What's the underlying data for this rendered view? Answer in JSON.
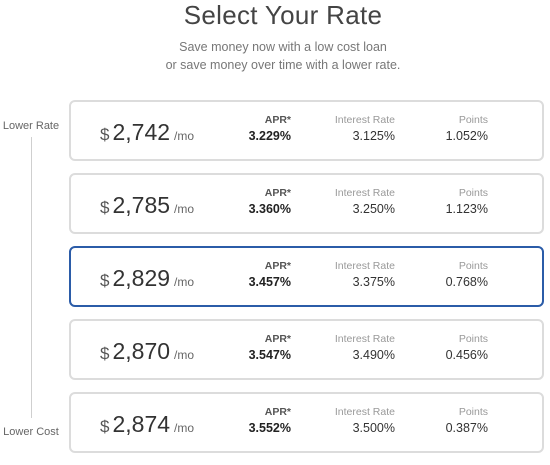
{
  "header": {
    "title": "Select Your Rate",
    "subtitle_line1": "Save money now with a low cost loan",
    "subtitle_line2": "or save money over time with a lower rate."
  },
  "scale": {
    "top_label": "Lower Rate",
    "bottom_label": "Lower Cost"
  },
  "labels": {
    "currency": "$",
    "per": "/mo",
    "apr": "APR*",
    "interest_rate": "Interest Rate",
    "points": "Points"
  },
  "rates": [
    {
      "payment": "2,742",
      "apr": "3.229%",
      "interest_rate": "3.125%",
      "points": "1.052%",
      "selected": false
    },
    {
      "payment": "2,785",
      "apr": "3.360%",
      "interest_rate": "3.250%",
      "points": "1.123%",
      "selected": false
    },
    {
      "payment": "2,829",
      "apr": "3.457%",
      "interest_rate": "3.375%",
      "points": "0.768%",
      "selected": true
    },
    {
      "payment": "2,870",
      "apr": "3.547%",
      "interest_rate": "3.490%",
      "points": "0.456%",
      "selected": false
    },
    {
      "payment": "2,874",
      "apr": "3.552%",
      "interest_rate": "3.500%",
      "points": "0.387%",
      "selected": false
    }
  ],
  "colors": {
    "selected_border": "#2b5ca8",
    "card_border": "#dcdcdc"
  }
}
